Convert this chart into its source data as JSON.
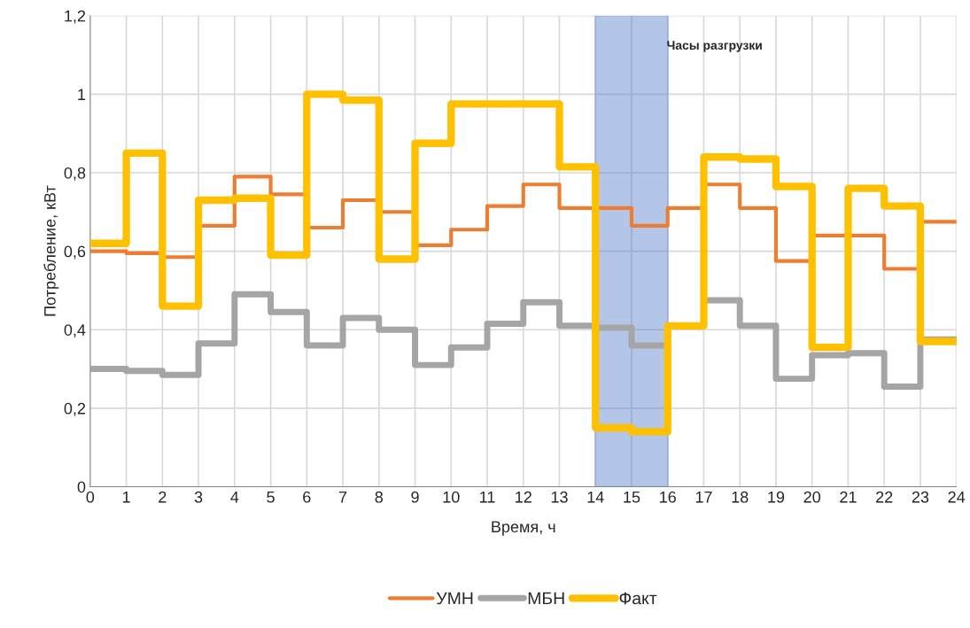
{
  "chart_data": {
    "type": "step",
    "xlabel": "Время, ч",
    "ylabel": "Потребление, кВт",
    "x": [
      0,
      1,
      2,
      3,
      4,
      5,
      6,
      7,
      8,
      9,
      10,
      11,
      12,
      13,
      14,
      15,
      16,
      17,
      18,
      19,
      20,
      21,
      22,
      23,
      24
    ],
    "series": [
      {
        "name": "УМН",
        "color": "#ed7d31",
        "values": [
          0.6,
          0.595,
          0.585,
          0.665,
          0.79,
          0.745,
          0.66,
          0.73,
          0.7,
          0.615,
          0.655,
          0.715,
          0.77,
          0.71,
          0.71,
          0.665,
          0.71,
          0.77,
          0.71,
          0.575,
          0.64,
          0.64,
          0.555,
          0.675,
          0.675
        ]
      },
      {
        "name": "МБН",
        "color": "#a5a5a5",
        "values": [
          0.3,
          0.295,
          0.285,
          0.365,
          0.49,
          0.445,
          0.36,
          0.43,
          0.4,
          0.31,
          0.355,
          0.415,
          0.47,
          0.41,
          0.405,
          0.36,
          0.41,
          0.475,
          0.41,
          0.275,
          0.335,
          0.34,
          0.255,
          0.375,
          0.375
        ]
      },
      {
        "name": "Факт",
        "color": "#ffc000",
        "values": [
          0.62,
          0.85,
          0.46,
          0.73,
          0.735,
          0.59,
          1.0,
          0.985,
          0.58,
          0.875,
          0.975,
          0.975,
          0.975,
          0.815,
          0.15,
          0.14,
          0.41,
          0.84,
          0.835,
          0.765,
          0.355,
          0.76,
          0.715,
          0.37,
          0.37
        ]
      }
    ],
    "xlim": [
      0,
      24
    ],
    "xticks": [
      0,
      1,
      2,
      3,
      4,
      5,
      6,
      7,
      8,
      9,
      10,
      11,
      12,
      13,
      14,
      15,
      16,
      17,
      18,
      19,
      20,
      21,
      22,
      23,
      24
    ],
    "ylim": [
      0,
      1.2
    ],
    "yticks": [
      0,
      {
        "value": 0.2,
        "label": "0,2"
      },
      {
        "value": 0.4,
        "label": "0,4"
      },
      {
        "value": 0.6,
        "label": "0,6"
      },
      {
        "value": 0.8,
        "label": "0,8"
      },
      1,
      {
        "value": 1.2,
        "label": "1,2"
      }
    ],
    "bands": [
      {
        "axis": "x",
        "from": 14,
        "to": 16,
        "label": "Часы разгрузки",
        "color": "#4472c4"
      }
    ],
    "grid": true,
    "legend": "bottom",
    "line_style": "solid"
  }
}
